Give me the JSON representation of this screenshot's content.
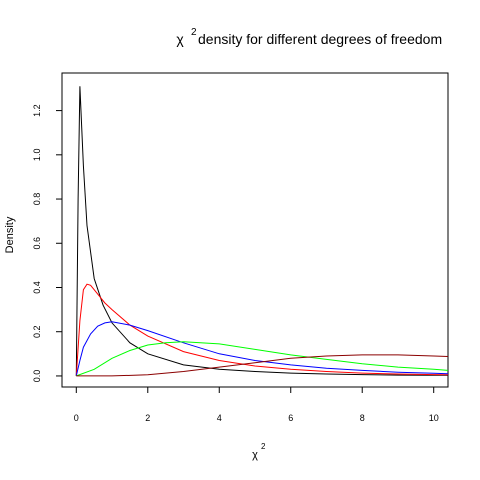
{
  "chart_data": {
    "type": "line",
    "title_symbol": "χ",
    "title_superscript": "2",
    "title_text": "density for different degrees of freedom",
    "xlabel_symbol": "χ",
    "xlabel_superscript": "2",
    "ylabel": "Density",
    "xlim": [
      -0.4,
      10.4
    ],
    "ylim": [
      -0.05,
      1.37
    ],
    "x_ticks": [
      "0",
      "2",
      "4",
      "6",
      "8",
      "10"
    ],
    "y_ticks": [
      "0.0",
      "0.2",
      "0.4",
      "0.6",
      "0.8",
      "1.0",
      "1.2"
    ],
    "grid": false,
    "legend": "none",
    "series": [
      {
        "color": "#000000",
        "x": [
          0.0,
          0.05,
          0.1,
          0.2,
          0.3,
          0.5,
          0.75,
          1.0,
          1.5,
          2.0,
          3.0,
          4.0,
          5.0,
          6.0,
          7.0,
          8.0,
          9.0,
          10.0,
          10.4
        ],
        "y": [
          0.0,
          0.8,
          1.31,
          0.95,
          0.68,
          0.44,
          0.32,
          0.24,
          0.15,
          0.1,
          0.05,
          0.03,
          0.02,
          0.013,
          0.009,
          0.006,
          0.004,
          0.003,
          0.003
        ]
      },
      {
        "color": "#ff0000",
        "x": [
          0.0,
          0.1,
          0.2,
          0.3,
          0.4,
          0.6,
          0.8,
          1.0,
          1.5,
          2.0,
          3.0,
          4.0,
          5.0,
          6.0,
          7.0,
          8.0,
          9.0,
          10.0,
          10.4
        ],
        "y": [
          0.0,
          0.25,
          0.39,
          0.415,
          0.41,
          0.37,
          0.33,
          0.3,
          0.23,
          0.18,
          0.11,
          0.07,
          0.045,
          0.03,
          0.02,
          0.013,
          0.009,
          0.006,
          0.005
        ]
      },
      {
        "color": "#0000ff",
        "x": [
          0.0,
          0.1,
          0.2,
          0.4,
          0.6,
          0.8,
          1.0,
          1.5,
          2.0,
          3.0,
          4.0,
          5.0,
          6.0,
          7.0,
          8.0,
          9.0,
          10.0,
          10.4
        ],
        "y": [
          0.0,
          0.07,
          0.13,
          0.19,
          0.225,
          0.24,
          0.245,
          0.23,
          0.205,
          0.15,
          0.1,
          0.07,
          0.05,
          0.035,
          0.025,
          0.017,
          0.012,
          0.01
        ]
      },
      {
        "color": "#00ff00",
        "x": [
          0.0,
          0.5,
          1.0,
          1.5,
          2.0,
          2.5,
          3.0,
          4.0,
          5.0,
          6.0,
          7.0,
          8.0,
          9.0,
          10.0,
          10.4
        ],
        "y": [
          0.0,
          0.03,
          0.08,
          0.115,
          0.14,
          0.15,
          0.155,
          0.145,
          0.12,
          0.095,
          0.075,
          0.055,
          0.04,
          0.03,
          0.025
        ]
      },
      {
        "color": "#8b0000",
        "x": [
          0.0,
          1.0,
          2.0,
          3.0,
          4.0,
          5.0,
          6.0,
          7.0,
          8.0,
          9.0,
          10.0,
          10.4
        ],
        "y": [
          0.0,
          0.0,
          0.005,
          0.02,
          0.04,
          0.06,
          0.08,
          0.09,
          0.095,
          0.095,
          0.09,
          0.088
        ]
      }
    ]
  }
}
